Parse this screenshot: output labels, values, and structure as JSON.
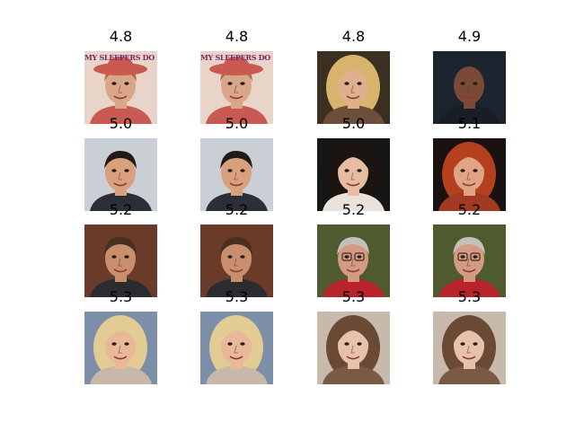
{
  "figure": {
    "panels": [
      {
        "score": "4.8",
        "image": "face-photo-red-hat-magazine-text",
        "banner_text": "MY SLEEPERS DO I",
        "colors": {
          "bg": "#e8d4c8",
          "skin": "#d9a68a",
          "hair": "#b7683c",
          "clothing": "#c95a52"
        }
      },
      {
        "score": "4.8",
        "image": "face-photo-red-hat-magazine-text",
        "banner_text": "MY SLEEPERS DO I",
        "colors": {
          "bg": "#e8d4c8",
          "skin": "#d9a68a",
          "hair": "#b7683c",
          "clothing": "#c95a52"
        }
      },
      {
        "score": "4.8",
        "image": "face-photo-blonde-woman-dark-background",
        "colors": {
          "bg": "#3b2f22",
          "skin": "#e0b08e",
          "hair": "#d7b36b",
          "clothing": "#6b4f3a"
        }
      },
      {
        "score": "4.9",
        "image": "face-photo-bald-man-dark-background",
        "colors": {
          "bg": "#1c2430",
          "skin": "#7a4a36",
          "hair": "#3b241c",
          "clothing": "#1a1d24"
        }
      },
      {
        "score": "5.0",
        "image": "face-photo-dark-haired-man-smiling",
        "colors": {
          "bg": "#c9cfd4",
          "skin": "#d9a07e",
          "hair": "#231a16",
          "clothing": "#2c2f38"
        }
      },
      {
        "score": "5.0",
        "image": "face-photo-dark-haired-man-smiling",
        "colors": {
          "bg": "#c9cfd4",
          "skin": "#d9a07e",
          "hair": "#231a16",
          "clothing": "#2c2f38"
        }
      },
      {
        "score": "5.0",
        "image": "face-photo-woman-looking-down",
        "colors": {
          "bg": "#161616",
          "skin": "#e6bca2",
          "hair": "#1b1410",
          "clothing": "#e8e2da"
        }
      },
      {
        "score": "5.1",
        "image": "face-photo-red-haired-woman",
        "colors": {
          "bg": "#1a1210",
          "skin": "#e0a384",
          "hair": "#b4401e",
          "clothing": "#a23a22"
        }
      },
      {
        "score": "5.2",
        "image": "face-photo-man-colorful-background",
        "colors": {
          "bg": "#6a3b28",
          "skin": "#c98e6e",
          "hair": "#4a2e1e",
          "clothing": "#2a2c30"
        }
      },
      {
        "score": "5.2",
        "image": "face-photo-man-colorful-background",
        "colors": {
          "bg": "#6a3b28",
          "skin": "#c98e6e",
          "hair": "#4a2e1e",
          "clothing": "#2a2c30"
        }
      },
      {
        "score": "5.2",
        "image": "face-photo-elderly-man-glasses",
        "colors": {
          "bg": "#4f5a2e",
          "skin": "#d49a84",
          "hair": "#c4c0b8",
          "clothing": "#b8242a"
        }
      },
      {
        "score": "5.2",
        "image": "face-photo-elderly-man-glasses",
        "colors": {
          "bg": "#4f5a2e",
          "skin": "#d49a84",
          "hair": "#c4c0b8",
          "clothing": "#b8242a"
        }
      },
      {
        "score": "5.3",
        "image": "face-photo-blonde-woman-smiling",
        "colors": {
          "bg": "#7d8ea8",
          "skin": "#e8b899",
          "hair": "#e3cc93",
          "clothing": "#c8b8a8"
        }
      },
      {
        "score": "5.3",
        "image": "face-photo-blonde-woman-smiling",
        "colors": {
          "bg": "#7d8ea8",
          "skin": "#e8b899",
          "hair": "#e3cc93",
          "clothing": "#c8b8a8"
        }
      },
      {
        "score": "5.3",
        "image": "face-photo-woman-brown-hair",
        "colors": {
          "bg": "#c8b9ad",
          "skin": "#e6c2ab",
          "hair": "#6a4a34",
          "clothing": "#7a5a45"
        }
      },
      {
        "score": "5.3",
        "image": "face-photo-woman-brown-hair",
        "colors": {
          "bg": "#c8b9ad",
          "skin": "#e6c2ab",
          "hair": "#6a4a34",
          "clothing": "#7a5a45"
        }
      }
    ]
  }
}
